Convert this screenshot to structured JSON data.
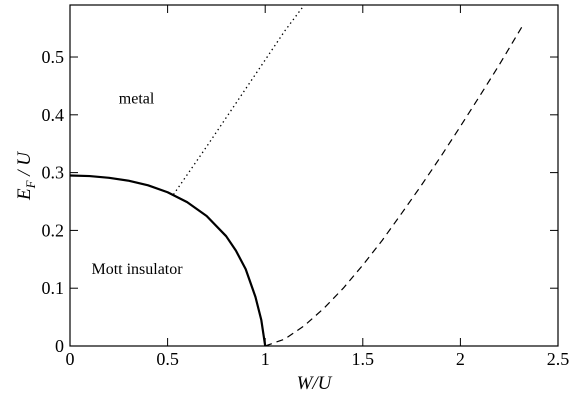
{
  "chart_data": {
    "type": "line",
    "title": "",
    "xlabel": "W/U",
    "ylabel_main": "E",
    "ylabel_sub": "F",
    "ylabel_rest": " / U",
    "xlim": [
      0,
      2.5
    ],
    "ylim": [
      0,
      0.59
    ],
    "x_ticks": [
      {
        "value": 0,
        "label": "0"
      },
      {
        "value": 0.5,
        "label": "0.5"
      },
      {
        "value": 1,
        "label": "1"
      },
      {
        "value": 1.5,
        "label": "1.5"
      },
      {
        "value": 2,
        "label": "2"
      },
      {
        "value": 2.5,
        "label": "2.5"
      }
    ],
    "y_ticks": [
      {
        "value": 0,
        "label": "0"
      },
      {
        "value": 0.1,
        "label": "0.1"
      },
      {
        "value": 0.2,
        "label": "0.2"
      },
      {
        "value": 0.3,
        "label": "0.3"
      },
      {
        "value": 0.4,
        "label": "0.4"
      },
      {
        "value": 0.5,
        "label": "0.5"
      }
    ],
    "grid": false,
    "annotations": [
      {
        "text": "metal",
        "x": 0.25,
        "y": 0.42
      },
      {
        "text": "Mott insulator",
        "x": 0.11,
        "y": 0.125
      }
    ],
    "series": [
      {
        "style": "solid",
        "x": [
          0,
          0.1,
          0.2,
          0.3,
          0.4,
          0.5,
          0.6,
          0.7,
          0.8,
          0.85,
          0.9,
          0.95,
          0.98,
          1.0
        ],
        "y": [
          0.295,
          0.294,
          0.291,
          0.286,
          0.278,
          0.266,
          0.249,
          0.225,
          0.19,
          0.165,
          0.133,
          0.085,
          0.045,
          0.0
        ]
      },
      {
        "style": "dotted",
        "x": [
          0.53,
          0.7,
          0.9,
          1.1,
          1.2
        ],
        "y": [
          0.262,
          0.345,
          0.445,
          0.545,
          0.59
        ]
      },
      {
        "style": "dashed",
        "x": [
          1.0,
          1.1,
          1.2,
          1.3,
          1.4,
          1.5,
          1.6,
          1.7,
          1.8,
          1.9,
          2.0,
          2.1,
          2.2,
          2.32
        ],
        "y": [
          0.0,
          0.012,
          0.035,
          0.065,
          0.1,
          0.14,
          0.183,
          0.23,
          0.278,
          0.328,
          0.38,
          0.433,
          0.487,
          0.555
        ]
      }
    ]
  }
}
